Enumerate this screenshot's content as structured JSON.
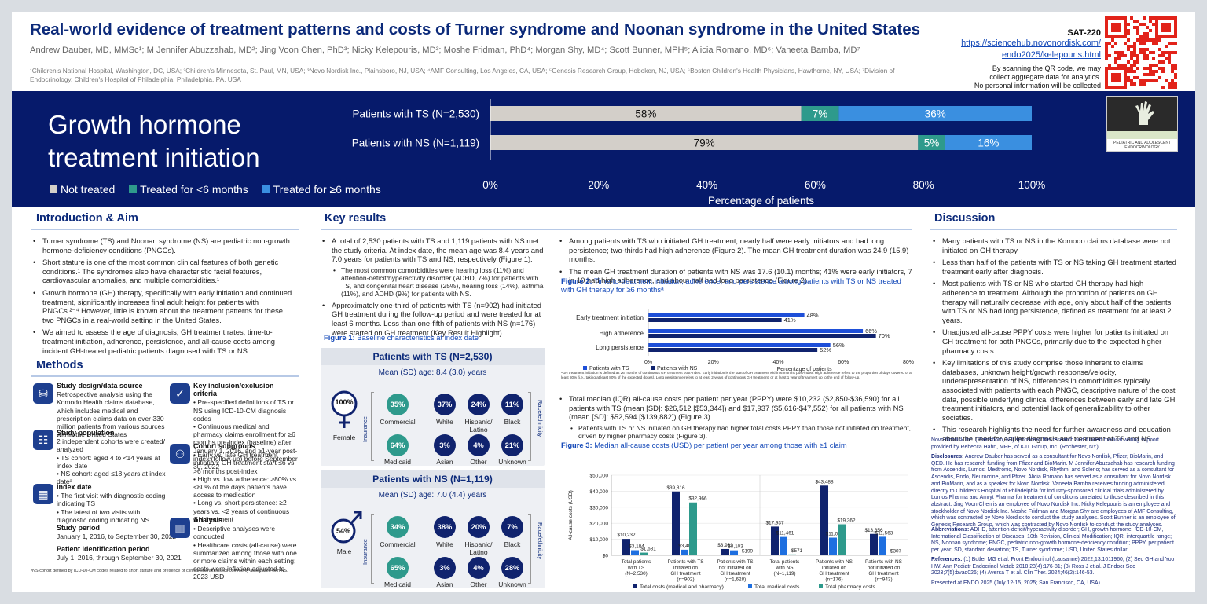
{
  "header": {
    "title": "Real-world evidence of treatment patterns and costs of Turner syndrome and Noonan syndrome in the United States",
    "authors": "Andrew Dauber, MD, MMSc¹; M Jennifer Abuzzahab, MD²; Jing Voon Chen, PhD³; Nicky Kelepouris, MD³; Moshe Fridman, PhD⁴; Morgan Shy, MD⁴; Scott Bunner, MPH⁵; Alicia Romano, MD⁶; Vaneeta Bamba, MD⁷",
    "affiliations": "¹Children's National Hospital, Washington, DC, USA; ²Children's Minnesota, St. Paul, MN, USA; ³Novo Nordisk Inc., Plainsboro, NJ, USA; ⁴AMF Consulting, Los Angeles, CA, USA; ⁵Genesis Research Group, Hoboken, NJ, USA; ⁶Boston Children's Health Physicians, Hawthorne, NY, USA; ⁷Division of Endocrinology, Children's Hospital of Philadelphia, Philadelphia, PA, USA",
    "poster_id": "SAT-220",
    "url_line1": "https://sciencehub.novonordisk.com/",
    "url_line2": "endo2025/kelepouris.html",
    "qr_note1": "By scanning the QR code, we may",
    "qr_note2": "collect aggregate data for analytics.",
    "qr_note3": "No personal information will be collected"
  },
  "band": {
    "title_line1": "Growth hormone",
    "title_line2": "treatment initiation",
    "legend": [
      "Not treated",
      "Treated for <6 months",
      "Treated for ≥6 months"
    ],
    "colors": {
      "not_treated": "#d3cfc9",
      "lt6": "#2e9a8c",
      "ge6": "#3a8fe0",
      "bg": "#061a6b"
    },
    "logo_caption": "PEDIATRIC AND ADOLESCENT ENDOCRINOLOGY"
  },
  "sections": {
    "intro": "Introduction & Aim",
    "methods": "Methods",
    "key_results": "Key results",
    "discussion": "Discussion"
  },
  "intro": [
    "Turner syndrome (TS) and Noonan syndrome (NS) are pediatric non-growth hormone-deficiency conditions (PNGCs).",
    "Short stature is one of the most common clinical features of both genetic conditions.¹ The syndromes also have characteristic facial features, cardiovascular anomalies, and multiple comorbidities.¹",
    "Growth hormone (GH) therapy, specifically with early initiation and continued treatment, significantly increases final adult height for patients with PNGCs.²⁻⁴ However, little is known about the treatment patterns for these two PNGCs in a real-world setting in the United States.",
    "We aimed to assess the age of diagnosis, GH treatment rates, time-to-treatment initiation, adherence, persistence, and all-cause costs among incident GH-treated pediatric patients diagnosed with TS or NS."
  ],
  "methods": {
    "study_design_title": "Study design/data source",
    "study_design_text": "Retrospective analysis using the Komodo Health claims database, which includes medical and prescription claims data on over 330 million patients from various sources within the United States",
    "study_pop_title": "Study population",
    "study_pop_text": "2 independent cohorts were created/ analyzed",
    "study_pop_bullets": [
      "TS cohort: aged 4 to <14 years at index date",
      "NS cohort: aged ≤18 years at index dateᵃ"
    ],
    "index_title": "Index date",
    "index_bullets": [
      "The first visit with diagnostic coding indicating TS",
      "The latest of two visits with diagnostic coding indicating NS"
    ],
    "period_title": "Study period",
    "period_text": "January 1, 2016, to September 30, 2022",
    "pid_title": "Patient identification period",
    "pid_text": "July 1, 2016, through September 30, 2021",
    "criteria_title": "Key inclusion/exclusion criteria",
    "criteria_bullets": [
      "Pre-specified definitions of TS or NS using ICD-10-CM diagnosis codes",
      "Continuous medical and pharmacy claims enrollment for ≥6 months pre-index (baseline) after January 1, 2016, and ≥1-year post-index (follow-up) before September 30, 2022"
    ],
    "subgroups_title": "Cohort subgroups",
    "subgroups_bullets": [
      "Early vs. late GH treatment initiation: GH treatment start ≤6 vs. >6 months post-index",
      "High vs. low adherence: ≥80% vs. <80% of the days patients have access to medication",
      "Long vs. short persistence: ≥2 years vs. <2 years of continuous GH treatment"
    ],
    "analysis_title": "Analysis",
    "analysis_bullets": [
      "Descriptive analyses were conducted",
      "Healthcare costs (all-cause) were summarized among those with one or more claims within each setting; costs were inflation adjusted to 2023 USD"
    ],
    "footnote": "ᵃNS cohort defined by ICD-10-CM codes related to short stature and presence of clinical characteristics commonly associated with NS."
  },
  "key_results_col1": {
    "b1": "A total of 2,530 patients with TS and 1,119 patients with NS met the study criteria. At index date, the mean age was 8.4 years and 7.0 years for patients with TS and NS, respectively (Figure 1).",
    "b1_sub": "The most common comorbidities were hearing loss (11%) and attention-deficit/hyperactivity disorder (ADHD, 7%) for patients with TS, and congenital heart disease (25%), hearing loss (14%), asthma (11%), and ADHD (9%) for patients with NS.",
    "b2": "Approximately one-third of patients with TS (n=902) had initiated GH treatment during the follow-up period and were treated for at least 6 months. Less than one-fifth of patients with NS (n=176) were started on GH treatment (Key Result Highlight).",
    "fig1_label": "Figure 1:",
    "fig1_caption": "Baseline characteristics at index date"
  },
  "fig1": {
    "ts": {
      "title": "Patients with TS (N=2,530)",
      "age": "Mean (SD) age: 8.4 (3.0) years",
      "sex_pct": "100%",
      "sex_label": "Female",
      "commercial": "35%",
      "medicaid": "64%",
      "white": "37%",
      "hispanic": "24%",
      "black": "11%",
      "asian": "3%",
      "other": "4%",
      "unknown": "21%"
    },
    "ns": {
      "title": "Patients with NS (N=1,119)",
      "age": "Mean (SD) age: 7.0 (4.4) years",
      "sex_pct": "54%",
      "sex_label": "Male",
      "commercial": "34%",
      "medicaid": "65%",
      "white": "38%",
      "hispanic": "20%",
      "black": "7%",
      "asian": "3%",
      "other": "4%",
      "unknown": "28%"
    },
    "labels": {
      "commercial": "Commercial",
      "medicaid": "Medicaid",
      "white": "White",
      "hispanic": "Hispanic/ Latino",
      "black": "Black",
      "asian": "Asian",
      "other": "Other",
      "unknown": "Unknown",
      "insurance": "Insurance",
      "race": "Race/ethnicity"
    }
  },
  "key_results_col2": {
    "b1": "Among patients with TS who initiated GH treatment, nearly half were early initiators and had long persistence; two-thirds had high adherence (Figure 2). The mean GH treatment duration was 24.9 (15.9) months.",
    "b2": "The mean GH treatment duration of patients with NS was 17.6 (10.1) months; 41% were early initiators, 7 in 10 had high adherence, and about half had long persistence (Figure 2).",
    "fig2_label": "Figure 2:",
    "fig2_caption": "Time-to-treatment initiation, adherence, and persistence among patients with TS or NS treated with GH therapy for ≥6 monthsᵃ",
    "fig2_footnote": "ᵃGH treatment initiation is defined as ≥6 months of continuous GH treatment post-index. Early initiation is the start of GH treatment within 6 months post-index. High adherence refers to the proportion of days covered of at least 80% (i.e., taking at least 80% of the expected doses). Long persistence refers to at least 2 years of continuous GH treatment, or at least 1 year of treatment up to the end of follow-up.",
    "b3": "Total median (IQR) all-cause costs per patient per year (PPPY) were $10,232 ($2,850-$36,590) for all patients with TS (mean [SD]: $26,512 [$53,344]) and $17,937 ($5,616-$47,552) for all patients with NS (mean [SD]: $52,594 [$139,882]) (Figure 3).",
    "b3_sub": "Patients with TS or NS initiated on GH therapy had higher total costs PPPY than those not initiated on treatment, driven by higher pharmacy costs (Figure 3).",
    "fig3_label": "Figure 3:",
    "fig3_caption": "Median all-cause costs (USD) per patient per year among those with ≥1 claim"
  },
  "discussion": {
    "bullets": [
      "Many patients with TS or NS in the Komodo claims database were not initiated on GH therapy.",
      "Less than half of the patients with TS or NS taking GH treatment started treatment early after diagnosis.",
      "Most patients with TS or NS who started GH therapy had high adherence to treatment. Although the proportion of patients on GH therapy will naturally decrease with age, only about half of the patients with TS or NS had long persistence, defined as treatment for at least 2 years.",
      "Unadjusted all-cause PPPY costs were higher for patients initiated on GH treatment for both PNGCs, primarily due to the expected higher pharmacy costs.",
      "Key limitations of this study comprise those inherent to claims databases, unknown height/growth response/velocity, underrepresentation of NS, differences in comorbidities typically associated with patients with each PNGC, descriptive nature of the cost data, possible underlying clinical differences between early and late GH treatment initiators, and potential lack of generalizability to other societies.",
      "This research highlights the need for further awareness and education about the need for earlier diagnosis and treatment of TS and NS."
    ],
    "sponsor": "Novo Nordisk Inc. (Plainsboro, NJ) sponsored this research and funded medical writing support provided by Rebecca Hahn, MPH, of KJT Group, Inc. (Rochester, NY).",
    "disclosures_label": "Disclosures:",
    "disclosures": "Andrew Dauber has served as a consultant for Novo Nordisk, Pfizer, BioMarin, and QED. He has research funding from Pfizer and BioMarin. M Jennifer Abuzzahab has research funding from Ascendis, Lumos, Medtronic, Novo Nordisk, Rhythm, and Soleno; has served as a consultant for Ascendis, Endo, Neurocrine, and Pfizer. Alicia Romano has served as a consultant for Novo Nordisk and BioMarin, and as a speaker for Novo Nordisk. Vaneeta Bamba receives funding administered directly to Children's Hospital of Philadelphia for industry-sponsored clinical trials administered by Lumos Pharma and Amryt Pharma for treatment of conditions unrelated to those described in this abstract. Jing Voon Chen is an employee of Novo Nordisk Inc. Nicky Kelepouris is an employee and stockholder of Novo Nordisk Inc. Moshe Fridman and Morgan Shy are employees of AMF Consulting, which was contracted by Novo Nordisk to conduct the study analyses. Scott Bunner is an employee of Genesis Research Group, which was contracted by Novo Nordisk to conduct the study analyses.",
    "abbrev_label": "Abbreviations:",
    "abbrev": "ADHD, attention-deficit/hyperactivity disorder; GH, growth hormone; ICD-10-CM, International Classification of Diseases, 10th Revision, Clinical Modification; IQR, interquartile range; NS, Noonan syndrome; PNGC, pediatric non-growth hormone-deficiency condition; PPPY, per patient per year; SD, standard deviation; TS, Turner syndrome; USD, United States dollar",
    "refs_label": "References:",
    "refs": "(1) Butler MG et al. Front Endocrinol (Lausanne) 2022;13:1011960; (2) Seo GH and Yoo HW. Ann Pediatr Endocrinol Metab 2018;23(4):176-81; (3) Ross J et al. J Endocr Soc 2023;7(5):bvad026; (4) Aversa T et al. Clin Ther. 2024;46(2):146-53.",
    "presented": "Presented at ENDO 2025 (July 12-15, 2025; San Francisco, CA, USA)."
  },
  "chart_data": [
    {
      "type": "bar",
      "orientation": "horizontal-stacked",
      "categories": [
        "Patients with TS (N=2,530)",
        "Patients with NS (N=1,119)"
      ],
      "series": [
        {
          "name": "Not treated",
          "values": [
            58,
            79
          ],
          "labels": [
            "58%",
            "79%"
          ]
        },
        {
          "name": "Treated for <6 months",
          "values": [
            7,
            5
          ],
          "labels": [
            "7%",
            "5%"
          ]
        },
        {
          "name": "Treated for ≥6 months",
          "values": [
            36,
            16
          ],
          "labels": [
            "36%",
            "16%"
          ]
        }
      ],
      "xlabel": "Percentage of patients",
      "xticks": [
        "0%",
        "20%",
        "40%",
        "60%",
        "80%",
        "100%"
      ],
      "xlim": [
        0,
        100
      ],
      "legend": "bottom-left"
    },
    {
      "type": "bar",
      "orientation": "horizontal-grouped",
      "categories": [
        "Early treatment initiation",
        "High adherence",
        "Long persistence"
      ],
      "series": [
        {
          "name": "Patients with TS",
          "values": [
            48,
            66,
            56
          ],
          "labels": [
            "48%",
            "66%",
            "56%"
          ],
          "color": "#1e4fd8"
        },
        {
          "name": "Patients with NS",
          "values": [
            41,
            70,
            52
          ],
          "labels": [
            "41%",
            "70%",
            "52%"
          ],
          "color": "#10236e"
        }
      ],
      "xlabel": "Percentage of patients",
      "xticks": [
        "0%",
        "20%",
        "40%",
        "60%",
        "80%"
      ],
      "xlim": [
        0,
        80
      ],
      "legend": "bottom-left"
    },
    {
      "type": "bar",
      "orientation": "vertical-grouped",
      "categories": [
        "Total patients with TS (N=2,530)",
        "Patients with TS initiated on GH treatment (n=902)",
        "Patients with TS not initiated on GH treatment (n=1,628)",
        "Total patients with NS (N=1,119)",
        "Patients with NS initiated on GH treatment (n=176)",
        "Patients with NS not initiated on GH treatment (n=943)"
      ],
      "category_lines": [
        [
          "Total patients",
          "with TS",
          "(N=2,530)"
        ],
        [
          "Patients with TS",
          "initiated on",
          "GH treatment",
          "(n=902)"
        ],
        [
          "Patients with TS",
          "not initiated on",
          "GH treatment",
          "(n=1,628)"
        ],
        [
          "Total patients",
          "with NS",
          "(N=1,119)"
        ],
        [
          "Patients with NS",
          "initiated on",
          "GH treatment",
          "(n=176)"
        ],
        [
          "Patients with NS",
          "not initiated on",
          "GH treatment",
          "(n=943)"
        ]
      ],
      "series": [
        {
          "name": "Total costs (medical and pharmacy)",
          "values": [
            10232,
            39816,
            3932,
            17937,
            43488,
            13356
          ],
          "labels": [
            "$10,232",
            "$39,816",
            "$3,932",
            "$17,937",
            "$43,488",
            "$13,356"
          ],
          "color": "#10236e"
        },
        {
          "name": "Total medical costs",
          "values": [
            3184,
            3485,
            3103,
            11461,
            11024,
            11563
          ],
          "labels": [
            "$3,184",
            "$3,485",
            "$3,103",
            "$11,461",
            "$11,024",
            "$11,563"
          ],
          "color": "#1e6fe0"
        },
        {
          "name": "Total pharmacy costs",
          "values": [
            1681,
            32966,
            199,
            571,
            19362,
            307
          ],
          "labels": [
            "$1,681",
            "$32,966",
            "$199",
            "$571",
            "$19,362",
            "$307"
          ],
          "color": "#2e9a8c"
        }
      ],
      "ylabel": "All-cause costs (USD)",
      "yticks": [
        "$0",
        "$10,000",
        "$20,000",
        "$30,000",
        "$40,000",
        "$50,000"
      ],
      "ylim": [
        0,
        50000
      ],
      "legend": "bottom"
    }
  ]
}
